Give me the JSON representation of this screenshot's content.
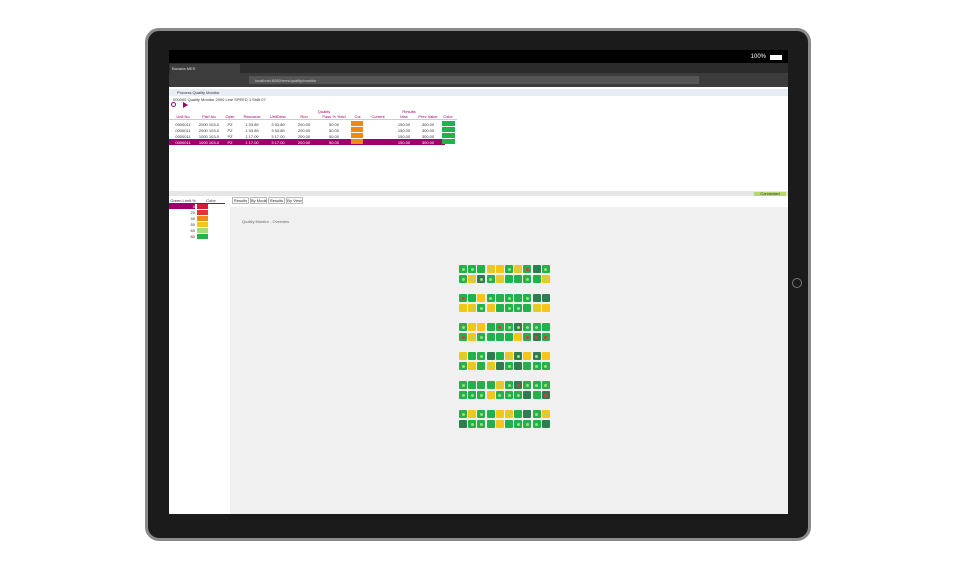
{
  "status": {
    "battery": "100%"
  },
  "browser": {
    "tab_title": "Bavaria MES",
    "url": "localhost:8080/mes/quality/monitor"
  },
  "app": {
    "title": "Process Quality Monitor",
    "subtitle": "000000 Quality Monitor  2000 Line  SPEED 1  Shift 07",
    "table": {
      "group_headers": [
        "Quality",
        "Results"
      ],
      "headers": [
        "Unit No",
        "Part No",
        "Oper",
        "Resource",
        "UnitDesc",
        "Run",
        "Pass % Yield",
        "Col.",
        "Current",
        "Max",
        "Prev Value",
        "Color"
      ],
      "quality_color": "#ef8a17",
      "result_color": "#21b24b",
      "selected_color": "#a0006a",
      "rows": [
        [
          "0000011",
          "2000 103-0",
          "PZ",
          "1 53.89",
          "3 53.89",
          "200.00",
          "50.00",
          "",
          "150.00",
          "300.00",
          "99"
        ],
        [
          "0000011",
          "2000 103-0",
          "PZ",
          "1 53.89",
          "3 53.89",
          "200.00",
          "50.00",
          "",
          "150.00",
          "300.00",
          "99"
        ],
        [
          "0000011",
          "1000 103-0",
          "PZ",
          "1 17.00",
          "3 17.00",
          "200.00",
          "50.00",
          "",
          "150.00",
          "300.00",
          "99"
        ],
        [
          "0000011",
          "1000 103-0",
          "PZ",
          "1 17.00",
          "3 17.00",
          "200.00",
          "50.00",
          "",
          "150.00",
          "300.00",
          "99"
        ]
      ]
    },
    "status_button": "Connected",
    "left_panel": {
      "headers": [
        "Green Limit %",
        "Color"
      ],
      "rows": [
        {
          "limit": "0",
          "color": "#d81b3c"
        },
        {
          "limit": "20",
          "color": "#e8323a"
        },
        {
          "limit": "40",
          "color": "#ef8a17"
        },
        {
          "limit": "50",
          "color": "#f5c518"
        },
        {
          "limit": "60",
          "color": "#9fdc7a"
        },
        {
          "limit": "80",
          "color": "#21b24b"
        }
      ]
    },
    "tabs": [
      "Results",
      "By Mode",
      "Results",
      "By View"
    ],
    "view_label": "Quality Monitor - Overview"
  }
}
